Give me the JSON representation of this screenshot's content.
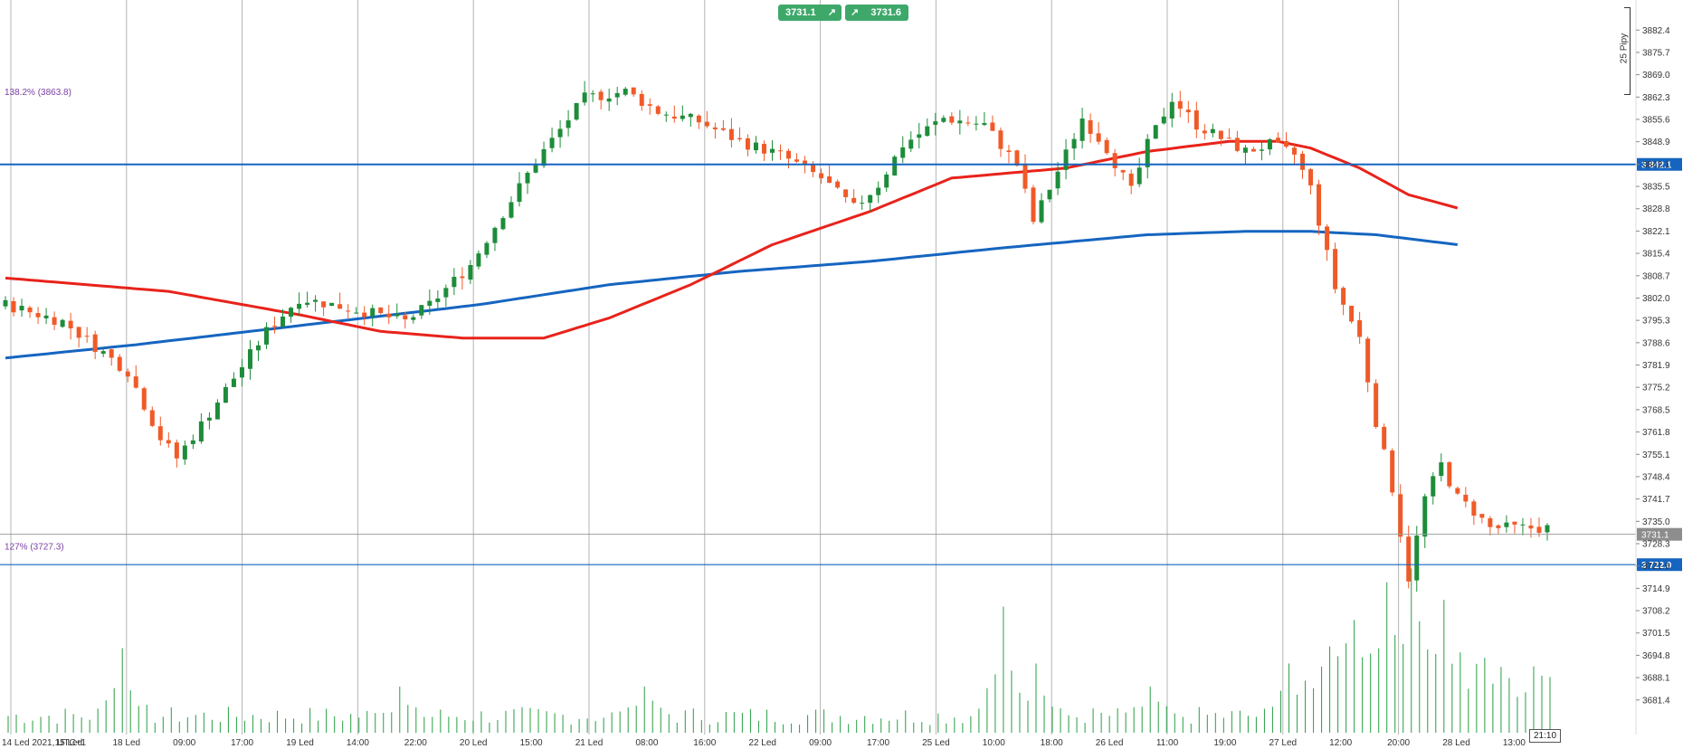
{
  "header": {
    "sell_price": "3731.1",
    "buy_price": "3731.6",
    "arrow": "↗"
  },
  "scale_bracket": {
    "label": "25 Pipy"
  },
  "fib_levels": [
    {
      "label": "138.2% (3863.8)",
      "value": 3863.8
    },
    {
      "label": "127% (3727.3)",
      "value": 3727.3
    }
  ],
  "hlines": [
    {
      "label": "3 842.1",
      "value": 3842.1
    },
    {
      "label": "3 722.0",
      "value": 3722.0
    }
  ],
  "last_price": {
    "label": "3731.1",
    "value": 3731.1
  },
  "crosshair_time": "21:10",
  "chart_data": {
    "type": "candlestick",
    "y_range": [
      3677,
      3886
    ],
    "y_ticks": [
      3882.4,
      3875.7,
      3869.0,
      3862.3,
      3855.6,
      3848.9,
      3842.1,
      3835.5,
      3828.8,
      3822.1,
      3815.4,
      3808.7,
      3802.0,
      3795.3,
      3788.6,
      3781.9,
      3775.2,
      3768.5,
      3761.8,
      3755.1,
      3748.4,
      3741.7,
      3735.0,
      3728.3,
      3721.6,
      3714.9,
      3708.2,
      3701.5,
      3694.8,
      3688.1,
      3681.4
    ],
    "x_labels": [
      "14 Led 2021, UTC+1",
      "15 Led",
      "18 Led",
      "09:00",
      "17:00",
      "19 Led",
      "14:00",
      "22:00",
      "20 Led",
      "15:00",
      "21 Led",
      "08:00",
      "16:00",
      "22 Led",
      "09:00",
      "17:00",
      "25 Led",
      "10:00",
      "18:00",
      "26 Led",
      "11:00",
      "19:00",
      "27 Led",
      "12:00",
      "20:00",
      "28 Led",
      "13:00"
    ],
    "candle_count": 190,
    "ma_fast_color": "#e8231b",
    "ma_slow_color": "#1565c0",
    "up_color": "#1e8c3a",
    "down_color": "#f05a28",
    "volume_color": "#3aa655",
    "hline_color": "#1565c0",
    "path_points": [
      [
        0,
        3800
      ],
      [
        7,
        3795
      ],
      [
        15,
        3780
      ],
      [
        19,
        3760
      ],
      [
        21,
        3754
      ],
      [
        24,
        3764
      ],
      [
        32,
        3792
      ],
      [
        36,
        3802
      ],
      [
        44,
        3798
      ],
      [
        49,
        3795
      ],
      [
        52,
        3800
      ],
      [
        57,
        3812
      ],
      [
        65,
        3843
      ],
      [
        71,
        3862
      ],
      [
        76,
        3864
      ],
      [
        80,
        3858
      ],
      [
        85,
        3855
      ],
      [
        90,
        3849
      ],
      [
        95,
        3845
      ],
      [
        100,
        3838
      ],
      [
        104,
        3829
      ],
      [
        107,
        3836
      ],
      [
        110,
        3848
      ],
      [
        115,
        3856
      ],
      [
        120,
        3854
      ],
      [
        124,
        3842
      ],
      [
        126,
        3825
      ],
      [
        129,
        3840
      ],
      [
        132,
        3856
      ],
      [
        135,
        3847
      ],
      [
        138,
        3834
      ],
      [
        140,
        3848
      ],
      [
        143,
        3862
      ],
      [
        146,
        3854
      ],
      [
        149,
        3850
      ],
      [
        152,
        3846
      ],
      [
        155,
        3848
      ],
      [
        158,
        3845
      ],
      [
        160,
        3835
      ],
      [
        163,
        3805
      ],
      [
        166,
        3790
      ],
      [
        168,
        3765
      ],
      [
        170,
        3745
      ],
      [
        172,
        3718
      ],
      [
        174,
        3742
      ],
      [
        176,
        3752
      ],
      [
        178,
        3742
      ],
      [
        180,
        3738
      ],
      [
        182,
        3733
      ]
    ],
    "ma_fast_points": [
      [
        0,
        3808
      ],
      [
        20,
        3804
      ],
      [
        36,
        3797
      ],
      [
        46,
        3792
      ],
      [
        56,
        3790
      ],
      [
        66,
        3790
      ],
      [
        74,
        3796
      ],
      [
        84,
        3806
      ],
      [
        94,
        3818
      ],
      [
        106,
        3828
      ],
      [
        116,
        3838
      ],
      [
        130,
        3841
      ],
      [
        140,
        3846
      ],
      [
        150,
        3849
      ],
      [
        156,
        3849
      ],
      [
        160,
        3847
      ],
      [
        166,
        3841
      ],
      [
        172,
        3833
      ],
      [
        178,
        3829
      ]
    ],
    "ma_slow_points": [
      [
        0,
        3784
      ],
      [
        16,
        3788
      ],
      [
        30,
        3792
      ],
      [
        44,
        3796
      ],
      [
        58,
        3800
      ],
      [
        74,
        3806
      ],
      [
        90,
        3810
      ],
      [
        106,
        3813
      ],
      [
        122,
        3817
      ],
      [
        140,
        3821
      ],
      [
        152,
        3822
      ],
      [
        160,
        3822
      ],
      [
        168,
        3821
      ],
      [
        178,
        3818
      ]
    ],
    "volume_spikes": [
      [
        14,
        0.55
      ],
      [
        48,
        0.3
      ],
      [
        78,
        0.3
      ],
      [
        122,
        0.82
      ],
      [
        126,
        0.45
      ],
      [
        140,
        0.3
      ],
      [
        157,
        0.45
      ],
      [
        162,
        0.38
      ],
      [
        165,
        0.58
      ],
      [
        169,
        0.78
      ],
      [
        172,
        0.85
      ],
      [
        176,
        0.55
      ],
      [
        181,
        0.3
      ]
    ]
  }
}
